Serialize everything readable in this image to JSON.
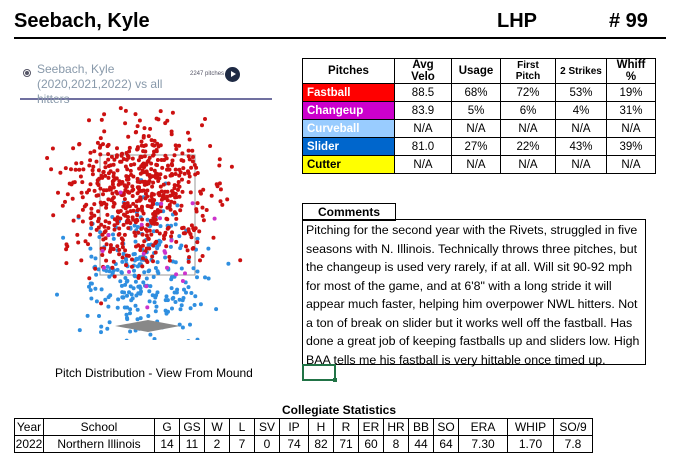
{
  "header": {
    "name": "Seebach, Kyle",
    "hand": "LHP",
    "number": "# 99"
  },
  "legend": {
    "text": "Seebach, Kyle (2020,2021,2022) vs all hitters",
    "count": "2247 pitches"
  },
  "pitch_table": {
    "columns": [
      "Pitches",
      "Avg Velo",
      "Usage",
      "First Pitch",
      "2 Strikes",
      "Whiff %"
    ],
    "rows": [
      {
        "name": "Fastball",
        "color": "#ff0000",
        "text_color": "#ffffff",
        "values": [
          "88.5",
          "68%",
          "72%",
          "53%",
          "19%"
        ]
      },
      {
        "name": "Changeup",
        "color": "#cc00cc",
        "text_color": "#ffffff",
        "values": [
          "83.9",
          "5%",
          "6%",
          "4%",
          "31%"
        ]
      },
      {
        "name": "Curveball",
        "color": "#99ccff",
        "text_color": "#ffffff",
        "values": [
          "N/A",
          "N/A",
          "N/A",
          "N/A",
          "N/A"
        ]
      },
      {
        "name": "Slider",
        "color": "#0066cc",
        "text_color": "#ffffff",
        "values": [
          "81.0",
          "27%",
          "22%",
          "43%",
          "39%"
        ]
      },
      {
        "name": "Cutter",
        "color": "#ffff00",
        "text_color": "#000000",
        "values": [
          "N/A",
          "N/A",
          "N/A",
          "N/A",
          "N/A"
        ]
      }
    ]
  },
  "comments": {
    "title": "Comments",
    "text": "Pitching for the second year with the Rivets, struggled in five seasons with N. Illinois. Technically throws three pitches, but the changeup is used very rarely, if at all. Will sit 90-92 mph for most of the game, and at 6'8\" with a long stride it will appear much faster, helping him overpower NWL hitters. Not a ton of break on slider but it works well off the fastball. Has done a great job of keeping fastballs up and sliders low. High BAA tells me his fastball is very hittable once timed up."
  },
  "caption": "Pitch Distribution - View From Mound",
  "stats": {
    "title": "Collegiate Statistics",
    "columns": [
      "Year",
      "School",
      "G",
      "GS",
      "W",
      "L",
      "SV",
      "IP",
      "H",
      "R",
      "ER",
      "HR",
      "BB",
      "SO",
      "ERA",
      "WHIP",
      "SO/9"
    ],
    "rows": [
      [
        "2022",
        "Northern Illinois",
        "14",
        "11",
        "2",
        "7",
        "0",
        "74",
        "82",
        "71",
        "60",
        "8",
        "44",
        "64",
        "7.30",
        "1.70",
        "7.8"
      ]
    ]
  }
}
